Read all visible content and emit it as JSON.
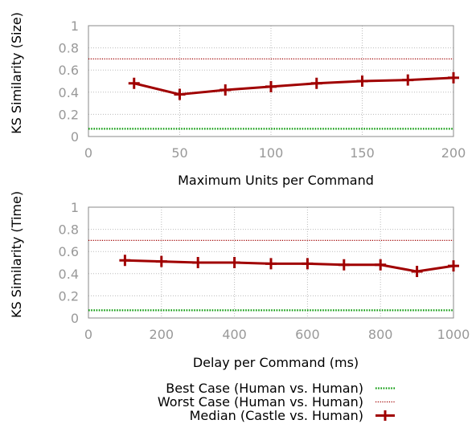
{
  "chart_data": [
    {
      "type": "line",
      "xlabel": "Maximum Units per Command",
      "ylabel": "KS Similarity (Size)",
      "xlim": [
        0,
        200
      ],
      "ylim": [
        0,
        1
      ],
      "xticks": [
        "0",
        "50",
        "100",
        "150",
        "200"
      ],
      "yticks": [
        "0",
        "0.2",
        "0.4",
        "0.6",
        "0.8",
        "1"
      ],
      "grid": true,
      "best_case": 0.07,
      "worst_case": 0.7,
      "x": [
        25,
        50,
        75,
        100,
        125,
        150,
        175,
        200
      ],
      "median": [
        0.48,
        0.38,
        0.42,
        0.45,
        0.48,
        0.5,
        0.51,
        0.53
      ]
    },
    {
      "type": "line",
      "xlabel": "Delay per Command (ms)",
      "ylabel": "KS Similarity (Time)",
      "xlim": [
        0,
        1000
      ],
      "ylim": [
        0,
        1
      ],
      "xticks": [
        "0",
        "200",
        "400",
        "600",
        "800",
        "1000"
      ],
      "yticks": [
        "0",
        "0.2",
        "0.4",
        "0.6",
        "0.8",
        "1"
      ],
      "grid": true,
      "best_case": 0.07,
      "worst_case": 0.7,
      "x": [
        100,
        200,
        300,
        400,
        500,
        600,
        700,
        800,
        900,
        1000
      ],
      "median": [
        0.52,
        0.51,
        0.5,
        0.5,
        0.49,
        0.49,
        0.48,
        0.48,
        0.42,
        0.47
      ]
    }
  ],
  "legend": {
    "placement": "bottom",
    "items": [
      {
        "label": "Best Case (Human vs. Human)",
        "color": "#0a9a0a",
        "style": "dotted"
      },
      {
        "label": "Worst Case (Human vs. Human)",
        "color": "#a00000",
        "style": "dotted"
      },
      {
        "label": "Median (Castle vs. Human)",
        "color": "#a00000",
        "style": "line-plus"
      }
    ]
  }
}
